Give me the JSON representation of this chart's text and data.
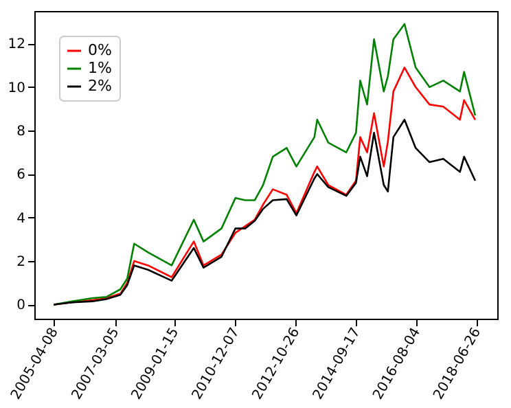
{
  "chart_data": {
    "type": "line",
    "x": [
      "2005-04-08",
      "2005-10-31",
      "2006-06-25",
      "2006-11-29",
      "2007-05-08",
      "2007-07-26",
      "2007-10-13",
      "2008-03-19",
      "2008-12-14",
      "2009-08-24",
      "2009-12-13",
      "2010-07-06",
      "2010-12-12",
      "2011-04-02",
      "2011-07-21",
      "2011-10-24",
      "2012-02-12",
      "2012-07-19",
      "2012-11-07",
      "2013-06-01",
      "2013-07-03",
      "2013-11-06",
      "2014-05-31",
      "2014-09-19",
      "2014-11-06",
      "2015-01-24",
      "2015-04-13",
      "2015-08-02",
      "2015-09-18",
      "2015-11-20",
      "2016-03-26",
      "2016-07-31",
      "2017-01-05",
      "2017-06-12",
      "2017-12-19",
      "2018-02-04",
      "2018-06-11"
    ],
    "series": [
      {
        "name": "0%",
        "color": "#ff0000",
        "values": [
          0,
          0.1,
          0.2,
          0.3,
          0.5,
          1.0,
          2.0,
          1.8,
          1.26,
          2.9,
          1.8,
          2.3,
          3.3,
          3.6,
          3.9,
          4.6,
          5.3,
          5.05,
          4.2,
          6.1,
          6.35,
          5.5,
          5.05,
          5.7,
          7.7,
          7.0,
          8.8,
          6.35,
          7.5,
          9.8,
          10.9,
          10.0,
          9.2,
          9.1,
          8.5,
          9.4,
          8.5
        ]
      },
      {
        "name": "1%",
        "color": "#008000",
        "values": [
          0,
          0.15,
          0.3,
          0.35,
          0.7,
          1.2,
          2.8,
          2.4,
          1.8,
          3.9,
          2.9,
          3.5,
          4.9,
          4.8,
          4.8,
          5.5,
          6.8,
          7.2,
          6.35,
          7.7,
          8.5,
          7.45,
          7.0,
          7.9,
          10.3,
          9.2,
          12.2,
          9.8,
          10.5,
          12.2,
          12.9,
          10.9,
          10.0,
          10.3,
          9.8,
          10.7,
          8.7
        ]
      },
      {
        "name": "2%",
        "color": "#000000",
        "values": [
          0,
          0.1,
          0.15,
          0.25,
          0.45,
          0.9,
          1.8,
          1.6,
          1.1,
          2.6,
          1.7,
          2.2,
          3.5,
          3.5,
          3.85,
          4.4,
          4.8,
          4.85,
          4.1,
          5.8,
          6.0,
          5.4,
          5.0,
          5.6,
          6.8,
          5.9,
          7.9,
          5.5,
          5.2,
          7.7,
          8.5,
          7.2,
          6.55,
          6.7,
          6.1,
          6.8,
          5.7
        ]
      }
    ],
    "xlim": [
      "2004-08-29",
      "2019-02-18"
    ],
    "xticks": [
      "2005-04-08",
      "2007-03-05",
      "2009-01-15",
      "2010-12-07",
      "2012-10-26",
      "2014-09-17",
      "2016-08-04",
      "2018-06-26"
    ],
    "ylim": [
      -0.65,
      13.5
    ],
    "yticks": [
      0,
      2,
      4,
      6,
      8,
      10,
      12
    ],
    "legend": "top left",
    "grid": false,
    "line_style": "solid",
    "marker": "none"
  }
}
